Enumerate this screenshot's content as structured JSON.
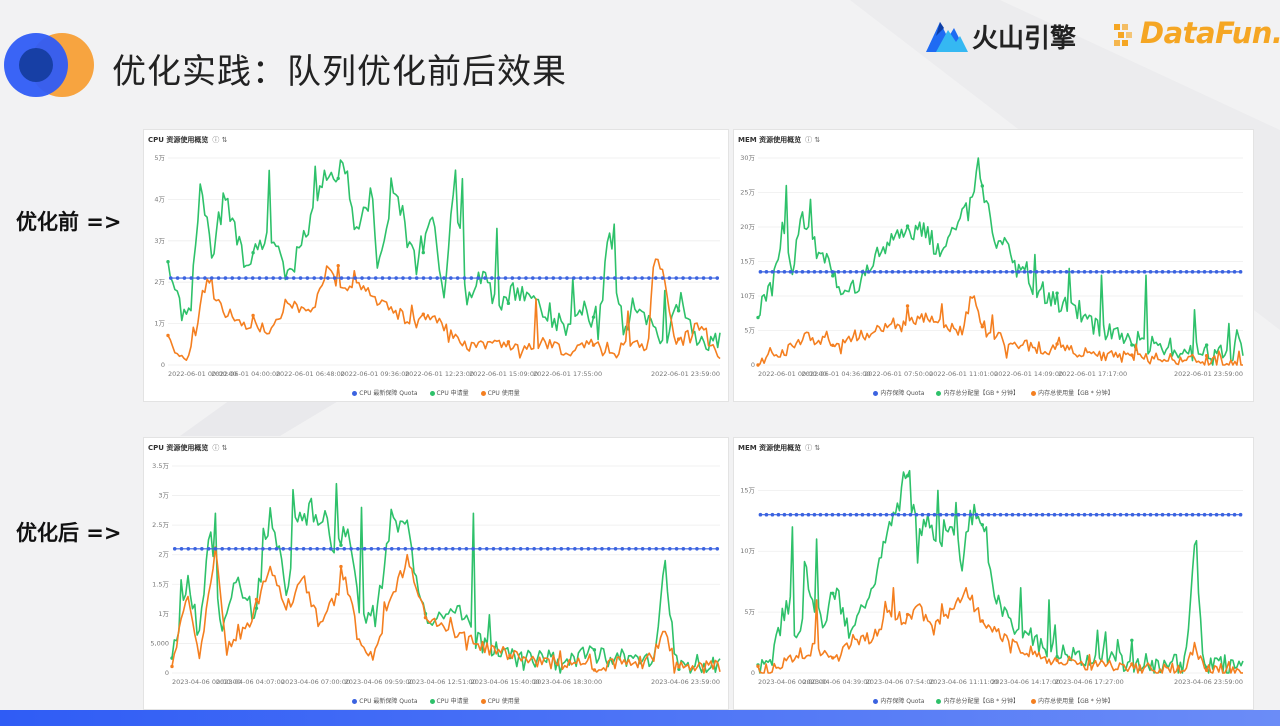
{
  "slide": {
    "title": "优化实践：队列优化前后效果",
    "brand_volc": "火山引擎",
    "brand_datafun": "DataFun.",
    "label_before": "优化前 =>",
    "label_after": "优化后 =>"
  },
  "colors": {
    "quota": "#3b63e0",
    "request": "#2ec16a",
    "usage": "#f47f20",
    "accent": "#2f5cf5"
  },
  "chart_data": [
    {
      "id": "before_cpu",
      "type": "line",
      "title": "CPU 资源使用概览",
      "info_icons": "ⓘ ⇅",
      "y_ticks": [
        "0",
        "1万",
        "2万",
        "3万",
        "4万",
        "5万"
      ],
      "ylim": [
        0,
        5
      ],
      "x_ticks": [
        "2022-06-01 00:00:00",
        "2022-06-01 04:00:00",
        "2022-06-01 06:48:00",
        "2022-06-01 09:36:00",
        "2022-06-01 12:23:00",
        "2022-06-01 15:09:00",
        "2022-06-01 17:55:00",
        "2022-06-01 23:59:00"
      ],
      "x_tick_pos": [
        0.0,
        0.141,
        0.258,
        0.375,
        0.492,
        0.608,
        0.724,
        1.0
      ],
      "legend": [
        "CPU 最新保障 Quota",
        "CPU 申请量",
        "CPU 使用量"
      ],
      "quota": 2.1,
      "request_keys": [
        [
          0,
          2.3
        ],
        [
          0.04,
          1.2
        ],
        [
          0.06,
          4.5
        ],
        [
          0.08,
          2.5
        ],
        [
          0.1,
          4.2
        ],
        [
          0.14,
          2.5
        ],
        [
          0.18,
          3.2
        ],
        [
          0.22,
          2.2
        ],
        [
          0.26,
          3.5
        ],
        [
          0.28,
          4.8
        ],
        [
          0.3,
          4.5
        ],
        [
          0.32,
          4.9
        ],
        [
          0.34,
          3.2
        ],
        [
          0.37,
          4.2
        ],
        [
          0.38,
          2.5
        ],
        [
          0.41,
          4.3
        ],
        [
          0.45,
          2.5
        ],
        [
          0.48,
          3.5
        ],
        [
          0.5,
          1.8
        ],
        [
          0.52,
          4.6
        ],
        [
          0.54,
          1.5
        ],
        [
          0.57,
          2.2
        ],
        [
          0.6,
          1.2
        ],
        [
          0.62,
          1.8
        ],
        [
          0.66,
          1.6
        ],
        [
          0.7,
          1.1
        ],
        [
          0.73,
          0.9
        ],
        [
          0.76,
          1.3
        ],
        [
          0.78,
          0.8
        ],
        [
          0.8,
          3.4
        ],
        [
          0.82,
          0.9
        ],
        [
          0.86,
          1.3
        ],
        [
          0.9,
          0.6
        ],
        [
          0.93,
          1.5
        ],
        [
          0.96,
          0.6
        ],
        [
          1,
          0.6
        ]
      ],
      "request_spikes": [
        [
          0.185,
          4.7
        ],
        [
          0.265,
          4.8
        ],
        [
          0.535,
          4.5
        ],
        [
          0.595,
          3.3
        ],
        [
          0.735,
          2.1
        ],
        [
          0.81,
          3.4
        ],
        [
          0.9,
          1.8
        ]
      ],
      "usage_keys": [
        [
          0,
          0.5
        ],
        [
          0.04,
          0.2
        ],
        [
          0.07,
          2.0
        ],
        [
          0.1,
          1.3
        ],
        [
          0.14,
          1.0
        ],
        [
          0.18,
          0.8
        ],
        [
          0.22,
          1.5
        ],
        [
          0.26,
          1.3
        ],
        [
          0.29,
          2.4
        ],
        [
          0.32,
          1.7
        ],
        [
          0.34,
          2.1
        ],
        [
          0.37,
          1.6
        ],
        [
          0.41,
          1.3
        ],
        [
          0.45,
          1.0
        ],
        [
          0.48,
          1.2
        ],
        [
          0.52,
          0.6
        ],
        [
          0.56,
          0.4
        ],
        [
          0.6,
          0.6
        ],
        [
          0.64,
          0.3
        ],
        [
          0.68,
          0.6
        ],
        [
          0.72,
          0.3
        ],
        [
          0.76,
          0.6
        ],
        [
          0.8,
          0.2
        ],
        [
          0.84,
          0.6
        ],
        [
          0.87,
          0.3
        ],
        [
          0.88,
          2.7
        ],
        [
          0.9,
          2.1
        ],
        [
          0.92,
          0.4
        ],
        [
          0.96,
          1.0
        ],
        [
          1,
          0.1
        ]
      ],
      "usage_spikes": [
        [
          0.08,
          2.1
        ],
        [
          0.31,
          2.4
        ],
        [
          0.665,
          1.6
        ],
        [
          0.835,
          1.3
        ],
        [
          0.955,
          1.0
        ]
      ]
    },
    {
      "id": "before_mem",
      "type": "line",
      "title": "MEM 资源使用概览",
      "info_icons": "ⓘ ⇅",
      "y_ticks": [
        "0",
        "5万",
        "10万",
        "15万",
        "20万",
        "25万",
        "30万"
      ],
      "ylim": [
        0,
        30
      ],
      "x_ticks": [
        "2022-06-01 00:00:00",
        "2022-06-01 04:36:00",
        "2022-06-01 07:50:00",
        "2022-06-01 11:01:00",
        "2022-06-01 14:09:00",
        "2022-06-01 17:17:00",
        "2022-06-01 23:59:00"
      ],
      "x_tick_pos": [
        0.0,
        0.161,
        0.29,
        0.424,
        0.558,
        0.69,
        1.0
      ],
      "legend": [
        "内存保障 Quota",
        "内存总分配量【GB * 分钟】",
        "内存总使用量【GB * 分钟】"
      ],
      "quota": 13.5,
      "request_keys": [
        [
          0,
          8
        ],
        [
          0.03,
          12
        ],
        [
          0.05,
          20
        ],
        [
          0.07,
          14
        ],
        [
          0.09,
          22
        ],
        [
          0.12,
          17
        ],
        [
          0.15,
          14
        ],
        [
          0.18,
          10
        ],
        [
          0.22,
          13
        ],
        [
          0.26,
          17
        ],
        [
          0.3,
          19
        ],
        [
          0.34,
          20
        ],
        [
          0.37,
          16
        ],
        [
          0.4,
          19
        ],
        [
          0.43,
          23
        ],
        [
          0.45,
          27
        ],
        [
          0.47,
          25
        ],
        [
          0.49,
          16
        ],
        [
          0.51,
          19
        ],
        [
          0.53,
          14
        ],
        [
          0.56,
          12
        ],
        [
          0.6,
          10
        ],
        [
          0.64,
          8
        ],
        [
          0.68,
          6
        ],
        [
          0.72,
          5
        ],
        [
          0.76,
          4
        ],
        [
          0.8,
          3
        ],
        [
          0.84,
          2.5
        ],
        [
          0.88,
          2
        ],
        [
          0.92,
          2
        ],
        [
          0.96,
          1.5
        ],
        [
          1,
          2
        ]
      ],
      "request_spikes": [
        [
          0.06,
          26
        ],
        [
          0.11,
          24
        ],
        [
          0.45,
          28
        ],
        [
          0.5,
          18
        ],
        [
          0.57,
          16
        ],
        [
          0.64,
          14
        ],
        [
          0.71,
          13
        ],
        [
          0.8,
          13
        ],
        [
          0.9,
          8
        ],
        [
          0.97,
          6
        ]
      ],
      "usage_keys": [
        [
          0,
          0.5
        ],
        [
          0.06,
          2
        ],
        [
          0.1,
          4
        ],
        [
          0.16,
          3.5
        ],
        [
          0.22,
          4.5
        ],
        [
          0.28,
          6
        ],
        [
          0.34,
          7
        ],
        [
          0.38,
          6
        ],
        [
          0.42,
          5
        ],
        [
          0.44,
          9.5
        ],
        [
          0.47,
          5
        ],
        [
          0.52,
          3
        ],
        [
          0.58,
          2.5
        ],
        [
          0.64,
          2
        ],
        [
          0.7,
          1.5
        ],
        [
          0.8,
          1
        ],
        [
          0.9,
          0.8
        ],
        [
          1,
          0.5
        ]
      ],
      "usage_spikes": [
        [
          0.445,
          10
        ],
        [
          0.62,
          4
        ],
        [
          0.95,
          2
        ]
      ]
    },
    {
      "id": "after_cpu",
      "type": "line",
      "title": "CPU 资源使用概览",
      "info_icons": "ⓘ ⇅",
      "y_ticks": [
        "0",
        "5,000",
        "1万",
        "1.5万",
        "2万",
        "2.5万",
        "3万",
        "3.5万"
      ],
      "ylim": [
        0,
        3.5
      ],
      "x_ticks": [
        "2023-04-06 00:00:00",
        "2023-04-06 04:07:00",
        "2023-04-06 07:00:00",
        "2023-04-06 09:59:00",
        "2023-04-06 12:51:00",
        "2023-04-06 15:40:00",
        "2023-04-06 18:30:00",
        "2023-04-06 23:59:00"
      ],
      "x_tick_pos": [
        0.0,
        0.143,
        0.262,
        0.378,
        0.493,
        0.608,
        0.722,
        1.0
      ],
      "legend": [
        "CPU 最新保障 Quota",
        "CPU 申请量",
        "CPU 使用量"
      ],
      "quota": 2.1,
      "request_keys": [
        [
          0,
          0.3
        ],
        [
          0.03,
          1.6
        ],
        [
          0.05,
          0.6
        ],
        [
          0.07,
          2.5
        ],
        [
          0.09,
          0.7
        ],
        [
          0.12,
          1.5
        ],
        [
          0.15,
          1.0
        ],
        [
          0.18,
          2.7
        ],
        [
          0.21,
          1.4
        ],
        [
          0.23,
          2.6
        ],
        [
          0.25,
          2.5
        ],
        [
          0.28,
          2.6
        ],
        [
          0.3,
          2.0
        ],
        [
          0.32,
          2.5
        ],
        [
          0.34,
          1.1
        ],
        [
          0.37,
          0.9
        ],
        [
          0.4,
          2.6
        ],
        [
          0.43,
          2.5
        ],
        [
          0.45,
          1.2
        ],
        [
          0.48,
          0.8
        ],
        [
          0.52,
          1.1
        ],
        [
          0.56,
          0.5
        ],
        [
          0.6,
          0.4
        ],
        [
          0.64,
          0.2
        ],
        [
          0.68,
          0.3
        ],
        [
          0.72,
          0.1
        ],
        [
          0.76,
          0.4
        ],
        [
          0.8,
          0.2
        ],
        [
          0.84,
          0.3
        ],
        [
          0.88,
          0.1
        ],
        [
          0.9,
          1.8
        ],
        [
          0.92,
          0.2
        ],
        [
          0.96,
          0.2
        ],
        [
          1,
          0.1
        ]
      ],
      "request_spikes": [
        [
          0.08,
          2.7
        ],
        [
          0.22,
          3.1
        ],
        [
          0.3,
          3.2
        ],
        [
          0.345,
          2.8
        ],
        [
          0.55,
          2.7
        ],
        [
          0.9,
          1.9
        ]
      ],
      "usage_keys": [
        [
          0,
          0.2
        ],
        [
          0.03,
          1.3
        ],
        [
          0.05,
          0.2
        ],
        [
          0.08,
          2.1
        ],
        [
          0.1,
          0.4
        ],
        [
          0.14,
          0.8
        ],
        [
          0.18,
          1.8
        ],
        [
          0.21,
          1.1
        ],
        [
          0.24,
          1.6
        ],
        [
          0.27,
          0.8
        ],
        [
          0.3,
          1.3
        ],
        [
          0.32,
          1.6
        ],
        [
          0.34,
          0.5
        ],
        [
          0.37,
          0.3
        ],
        [
          0.4,
          1.3
        ],
        [
          0.43,
          1.9
        ],
        [
          0.46,
          1.0
        ],
        [
          0.5,
          0.7
        ],
        [
          0.54,
          0.6
        ],
        [
          0.58,
          0.4
        ],
        [
          0.62,
          0.3
        ],
        [
          0.66,
          0.2
        ],
        [
          0.7,
          0.15
        ],
        [
          0.74,
          0.2
        ],
        [
          0.78,
          0.1
        ],
        [
          0.82,
          0.2
        ],
        [
          0.86,
          0.1
        ],
        [
          0.9,
          0.7
        ],
        [
          0.92,
          0.1
        ],
        [
          0.96,
          0.1
        ],
        [
          1,
          0.1
        ]
      ],
      "usage_spikes": [
        [
          0.31,
          1.8
        ],
        [
          0.43,
          2.0
        ],
        [
          0.9,
          0.7
        ]
      ]
    },
    {
      "id": "after_mem",
      "type": "line",
      "title": "MEM 资源使用概览",
      "info_icons": "ⓘ ⇅",
      "y_ticks": [
        "0",
        "5万",
        "10万",
        "15万"
      ],
      "ylim": [
        0,
        17
      ],
      "x_ticks": [
        "2023-04-06 00:00:00",
        "2023-04-06 04:39:00",
        "2023-04-06 07:54:00",
        "2023-04-06 11:11:00",
        "2023-04-06 14:17:00",
        "2023-04-06 17:27:00",
        "2023-04-06 23:59:00"
      ],
      "x_tick_pos": [
        0.0,
        0.163,
        0.293,
        0.424,
        0.552,
        0.683,
        1.0
      ],
      "legend": [
        "内存保障 Quota",
        "内存总分配量【GB * 分钟】",
        "内存总使用量【GB * 分钟】"
      ],
      "quota": 13.0,
      "request_keys": [
        [
          0,
          0.5
        ],
        [
          0.03,
          1.5
        ],
        [
          0.06,
          6
        ],
        [
          0.08,
          2
        ],
        [
          0.1,
          8
        ],
        [
          0.13,
          4
        ],
        [
          0.16,
          7
        ],
        [
          0.19,
          3
        ],
        [
          0.22,
          6
        ],
        [
          0.25,
          9
        ],
        [
          0.27,
          12
        ],
        [
          0.29,
          14
        ],
        [
          0.31,
          16
        ],
        [
          0.33,
          11
        ],
        [
          0.35,
          13
        ],
        [
          0.37,
          10
        ],
        [
          0.4,
          12
        ],
        [
          0.42,
          9
        ],
        [
          0.44,
          13
        ],
        [
          0.46,
          13
        ],
        [
          0.48,
          8
        ],
        [
          0.5,
          5
        ],
        [
          0.53,
          4
        ],
        [
          0.56,
          3
        ],
        [
          0.6,
          2
        ],
        [
          0.64,
          1.5
        ],
        [
          0.68,
          1
        ],
        [
          0.72,
          1.5
        ],
        [
          0.76,
          0.8
        ],
        [
          0.8,
          1
        ],
        [
          0.84,
          0.6
        ],
        [
          0.88,
          0.8
        ],
        [
          0.9,
          10
        ],
        [
          0.92,
          0.6
        ],
        [
          0.96,
          0.5
        ],
        [
          1,
          0.5
        ]
      ],
      "request_spikes": [
        [
          0.07,
          12
        ],
        [
          0.12,
          11
        ],
        [
          0.3,
          16.5
        ],
        [
          0.37,
          15
        ],
        [
          0.41,
          14
        ],
        [
          0.47,
          12
        ],
        [
          0.54,
          7
        ],
        [
          0.6,
          6
        ],
        [
          0.9,
          10.5
        ]
      ],
      "usage_keys": [
        [
          0,
          0.1
        ],
        [
          0.04,
          0.5
        ],
        [
          0.08,
          1.5
        ],
        [
          0.12,
          2
        ],
        [
          0.16,
          1.2
        ],
        [
          0.2,
          2.5
        ],
        [
          0.24,
          3
        ],
        [
          0.27,
          5
        ],
        [
          0.3,
          4
        ],
        [
          0.33,
          5.5
        ],
        [
          0.36,
          3.5
        ],
        [
          0.4,
          5
        ],
        [
          0.43,
          7
        ],
        [
          0.46,
          4.5
        ],
        [
          0.5,
          3
        ],
        [
          0.54,
          2
        ],
        [
          0.58,
          1.5
        ],
        [
          0.62,
          1
        ],
        [
          0.66,
          0.8
        ],
        [
          0.7,
          0.6
        ],
        [
          0.76,
          0.4
        ],
        [
          0.82,
          0.3
        ],
        [
          0.88,
          0.3
        ],
        [
          0.9,
          2
        ],
        [
          0.92,
          0.3
        ],
        [
          1,
          0.2
        ]
      ],
      "usage_spikes": [
        [
          0.12,
          6
        ],
        [
          0.28,
          7
        ],
        [
          0.43,
          7
        ],
        [
          0.9,
          2.5
        ]
      ]
    }
  ]
}
